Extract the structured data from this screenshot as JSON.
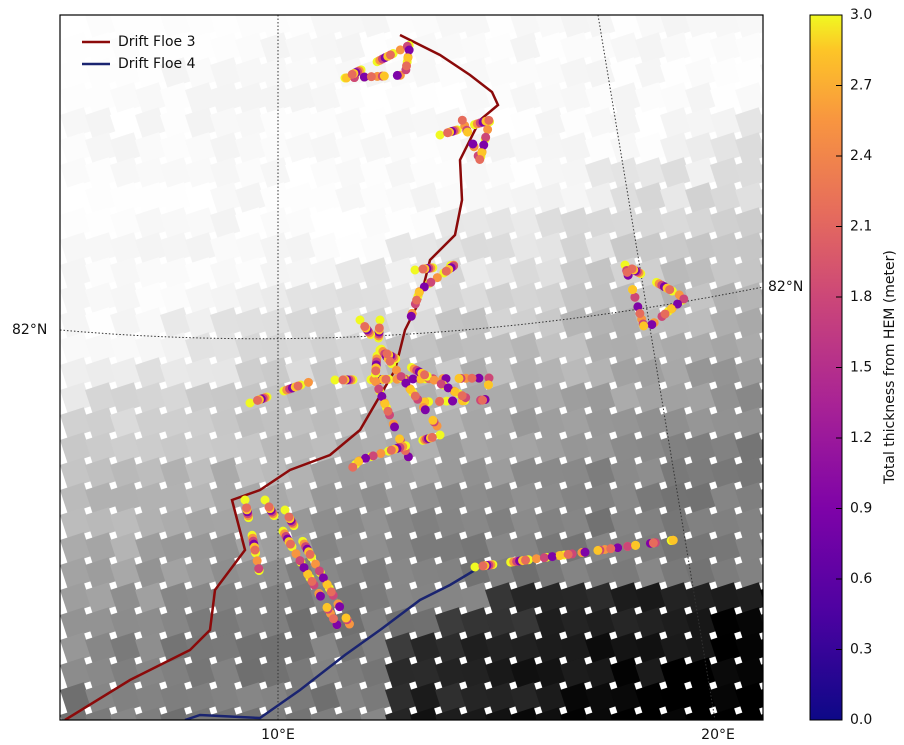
{
  "chart_data": {
    "type": "map",
    "series": [
      {
        "name": "Drift Floe 3",
        "color": "#8b0a0a"
      },
      {
        "name": "Drift Floe 4",
        "color": "#1a2470"
      }
    ],
    "graticule_labels": {
      "lat": [
        "82°N",
        "82°N"
      ],
      "lon": [
        "10°E",
        "20°E"
      ]
    },
    "colorbar": {
      "label": "Total thickness from HEM (meter)",
      "lim": [
        0,
        3
      ],
      "ticks": [
        {
          "value": 0,
          "label": "0.0"
        },
        {
          "value": 0.3,
          "label": "0.3"
        },
        {
          "value": 0.6,
          "label": "0.6"
        },
        {
          "value": 0.9,
          "label": "0.9"
        },
        {
          "value": 1.2,
          "label": "1.2"
        },
        {
          "value": 1.5,
          "label": "1.5"
        },
        {
          "value": 1.8,
          "label": "1.8"
        },
        {
          "value": 2.1,
          "label": "2.1"
        },
        {
          "value": 2.4,
          "label": "2.4"
        },
        {
          "value": 2.7,
          "label": "2.7"
        },
        {
          "value": 3,
          "label": "3.0"
        }
      ]
    }
  }
}
